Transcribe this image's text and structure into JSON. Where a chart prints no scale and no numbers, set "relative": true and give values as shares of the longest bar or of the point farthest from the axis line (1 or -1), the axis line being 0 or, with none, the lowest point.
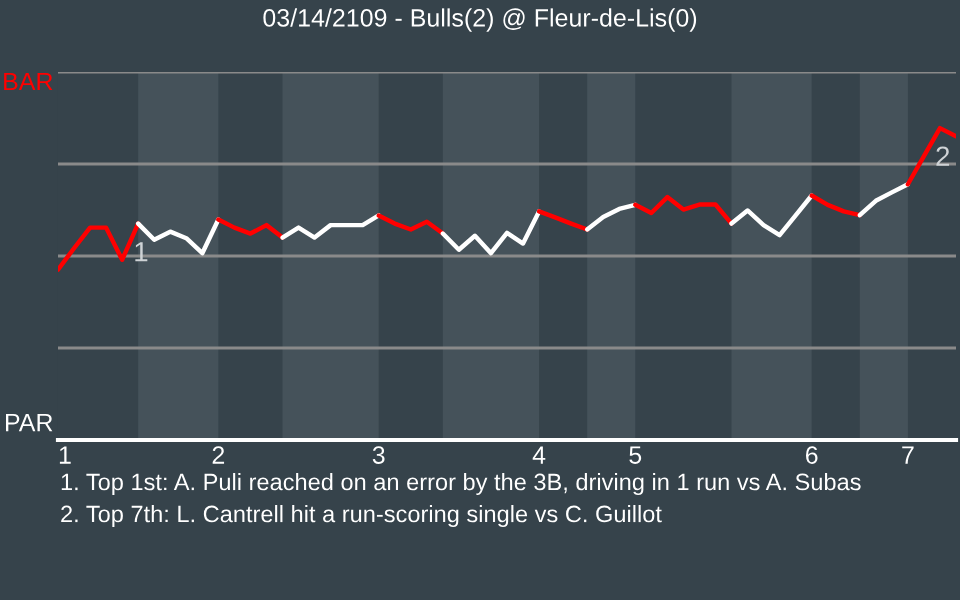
{
  "chart_data": {
    "type": "line",
    "title": "03/14/2109 - Bulls(2) @ Fleur-de-Lis(0)",
    "relative": true,
    "categories": [
      "1",
      null,
      null,
      null,
      null,
      null,
      null,
      null,
      null,
      null,
      "2",
      null,
      null,
      null,
      null,
      null,
      null,
      null,
      null,
      null,
      "3",
      null,
      null,
      null,
      null,
      null,
      null,
      null,
      null,
      null,
      "4",
      null,
      null,
      null,
      null,
      null,
      "5",
      null,
      null,
      null,
      null,
      null,
      null,
      null,
      null,
      null,
      null,
      "6",
      null,
      null,
      null,
      null,
      null,
      "7",
      null,
      null,
      null
    ],
    "grid": "y",
    "line_style": "solid",
    "series": [
      {
        "color": "#ff0000",
        "values": [
          0.546,
          0.615,
          0.681,
          0.681,
          0.578,
          0.694,
          null,
          null,
          null,
          null,
          null,
          null,
          null,
          null,
          null,
          null,
          null,
          null,
          null,
          null,
          null,
          null,
          null,
          null,
          null,
          null,
          null,
          null,
          null,
          null,
          null,
          null,
          null,
          null,
          null,
          null,
          null,
          null,
          null,
          null,
          null,
          null,
          null,
          null,
          null,
          null,
          null,
          null,
          null,
          null,
          null,
          null,
          null,
          null,
          null,
          null,
          null
        ]
      },
      {
        "color": "#ffffff",
        "values": [
          null,
          null,
          null,
          null,
          null,
          0.694,
          0.642,
          0.668,
          0.647,
          0.599,
          0.707,
          null,
          null,
          null,
          null,
          null,
          null,
          null,
          null,
          null,
          null,
          null,
          null,
          null,
          null,
          null,
          null,
          null,
          null,
          null,
          null,
          null,
          null,
          null,
          null,
          null,
          null,
          null,
          null,
          null,
          null,
          null,
          null,
          null,
          null,
          null,
          null,
          null,
          null,
          null,
          null,
          null,
          null,
          null,
          null,
          null,
          null
        ]
      },
      {
        "color": "#ff0000",
        "values": [
          null,
          null,
          null,
          null,
          null,
          null,
          null,
          null,
          null,
          null,
          0.707,
          0.681,
          0.662,
          0.689,
          0.649,
          null,
          null,
          null,
          null,
          null,
          null,
          null,
          null,
          null,
          null,
          null,
          null,
          null,
          null,
          null,
          null,
          null,
          null,
          null,
          null,
          null,
          null,
          null,
          null,
          null,
          null,
          null,
          null,
          null,
          null,
          null,
          null,
          null,
          null,
          null,
          null,
          null,
          null,
          null,
          null,
          null,
          null
        ]
      },
      {
        "color": "#ffffff",
        "values": [
          null,
          null,
          null,
          null,
          null,
          null,
          null,
          null,
          null,
          null,
          null,
          null,
          null,
          null,
          0.649,
          0.681,
          0.649,
          0.689,
          0.689,
          0.689,
          0.72,
          null,
          null,
          null,
          null,
          null,
          null,
          null,
          null,
          null,
          null,
          null,
          null,
          null,
          null,
          null,
          null,
          null,
          null,
          null,
          null,
          null,
          null,
          null,
          null,
          null,
          null,
          null,
          null,
          null,
          null,
          null,
          null,
          null,
          null,
          null,
          null
        ]
      },
      {
        "color": "#ff0000",
        "values": [
          null,
          null,
          null,
          null,
          null,
          null,
          null,
          null,
          null,
          null,
          null,
          null,
          null,
          null,
          null,
          null,
          null,
          null,
          null,
          null,
          0.72,
          0.694,
          0.675,
          0.7,
          0.662,
          null,
          null,
          null,
          null,
          null,
          null,
          null,
          null,
          null,
          null,
          null,
          null,
          null,
          null,
          null,
          null,
          null,
          null,
          null,
          null,
          null,
          null,
          null,
          null,
          null,
          null,
          null,
          null,
          null,
          null,
          null,
          null
        ]
      },
      {
        "color": "#ffffff",
        "values": [
          null,
          null,
          null,
          null,
          null,
          null,
          null,
          null,
          null,
          null,
          null,
          null,
          null,
          null,
          null,
          null,
          null,
          null,
          null,
          null,
          null,
          null,
          null,
          null,
          0.662,
          0.61,
          0.655,
          0.599,
          0.664,
          0.63,
          0.733,
          null,
          null,
          null,
          null,
          null,
          null,
          null,
          null,
          null,
          null,
          null,
          null,
          null,
          null,
          null,
          null,
          null,
          null,
          null,
          null,
          null,
          null,
          null,
          null,
          null,
          null
        ]
      },
      {
        "color": "#ff0000",
        "values": [
          null,
          null,
          null,
          null,
          null,
          null,
          null,
          null,
          null,
          null,
          null,
          null,
          null,
          null,
          null,
          null,
          null,
          null,
          null,
          null,
          null,
          null,
          null,
          null,
          null,
          null,
          null,
          null,
          null,
          null,
          0.733,
          0.714,
          0.694,
          0.675,
          null,
          null,
          null,
          null,
          null,
          null,
          null,
          null,
          null,
          null,
          null,
          null,
          null,
          null,
          null,
          null,
          null,
          null,
          null,
          null,
          null,
          null,
          null
        ]
      },
      {
        "color": "#ffffff",
        "values": [
          null,
          null,
          null,
          null,
          null,
          null,
          null,
          null,
          null,
          null,
          null,
          null,
          null,
          null,
          null,
          null,
          null,
          null,
          null,
          null,
          null,
          null,
          null,
          null,
          null,
          null,
          null,
          null,
          null,
          null,
          null,
          null,
          null,
          0.675,
          0.715,
          0.741,
          0.754,
          null,
          null,
          null,
          null,
          null,
          null,
          null,
          null,
          null,
          null,
          null,
          null,
          null,
          null,
          null,
          null,
          null,
          null,
          null,
          null
        ]
      },
      {
        "color": "#ff0000",
        "values": [
          null,
          null,
          null,
          null,
          null,
          null,
          null,
          null,
          null,
          null,
          null,
          null,
          null,
          null,
          null,
          null,
          null,
          null,
          null,
          null,
          null,
          null,
          null,
          null,
          null,
          null,
          null,
          null,
          null,
          null,
          null,
          null,
          null,
          null,
          null,
          null,
          0.754,
          0.728,
          0.779,
          0.739,
          0.755,
          0.755,
          0.694,
          null,
          null,
          null,
          null,
          null,
          null,
          null,
          null,
          null,
          null,
          null,
          null,
          null,
          null
        ]
      },
      {
        "color": "#ffffff",
        "values": [
          null,
          null,
          null,
          null,
          null,
          null,
          null,
          null,
          null,
          null,
          null,
          null,
          null,
          null,
          null,
          null,
          null,
          null,
          null,
          null,
          null,
          null,
          null,
          null,
          null,
          null,
          null,
          null,
          null,
          null,
          null,
          null,
          null,
          null,
          null,
          null,
          null,
          null,
          null,
          null,
          null,
          null,
          0.694,
          0.736,
          0.689,
          0.657,
          0.72,
          0.784,
          null,
          null,
          null,
          null,
          null,
          null,
          null,
          null,
          null
        ]
      },
      {
        "color": "#ff0000",
        "values": [
          null,
          null,
          null,
          null,
          null,
          null,
          null,
          null,
          null,
          null,
          null,
          null,
          null,
          null,
          null,
          null,
          null,
          null,
          null,
          null,
          null,
          null,
          null,
          null,
          null,
          null,
          null,
          null,
          null,
          null,
          null,
          null,
          null,
          null,
          null,
          null,
          null,
          null,
          null,
          null,
          null,
          null,
          null,
          null,
          null,
          null,
          null,
          0.784,
          0.754,
          0.733,
          0.721,
          null,
          null,
          null,
          null,
          null,
          null
        ]
      },
      {
        "color": "#ffffff",
        "values": [
          null,
          null,
          null,
          null,
          null,
          null,
          null,
          null,
          null,
          null,
          null,
          null,
          null,
          null,
          null,
          null,
          null,
          null,
          null,
          null,
          null,
          null,
          null,
          null,
          null,
          null,
          null,
          null,
          null,
          null,
          null,
          null,
          null,
          null,
          null,
          null,
          null,
          null,
          null,
          null,
          null,
          null,
          null,
          null,
          null,
          null,
          null,
          null,
          null,
          null,
          0.721,
          0.767,
          0.794,
          0.82,
          null,
          null,
          null
        ]
      },
      {
        "color": "#ff0000",
        "values": [
          null,
          null,
          null,
          null,
          null,
          null,
          null,
          null,
          null,
          null,
          null,
          null,
          null,
          null,
          null,
          null,
          null,
          null,
          null,
          null,
          null,
          null,
          null,
          null,
          null,
          null,
          null,
          null,
          null,
          null,
          null,
          null,
          null,
          null,
          null,
          null,
          null,
          null,
          null,
          null,
          null,
          null,
          null,
          null,
          null,
          null,
          null,
          null,
          null,
          null,
          null,
          null,
          null,
          0.82,
          0.91,
          1,
          0.974
        ]
      }
    ],
    "annotations": [
      "BAR",
      "PAR",
      {
        "text": "1",
        "y": 0.694
      },
      {
        "text": "2",
        "y": 1
      },
      "1. Top 1st: A. Puli reached on an error by the 3B, driving in 1 run vs A. Subas",
      "2. Top 7th: L. Cantrell hit a run-scoring single vs C. Guillot"
    ]
  }
}
